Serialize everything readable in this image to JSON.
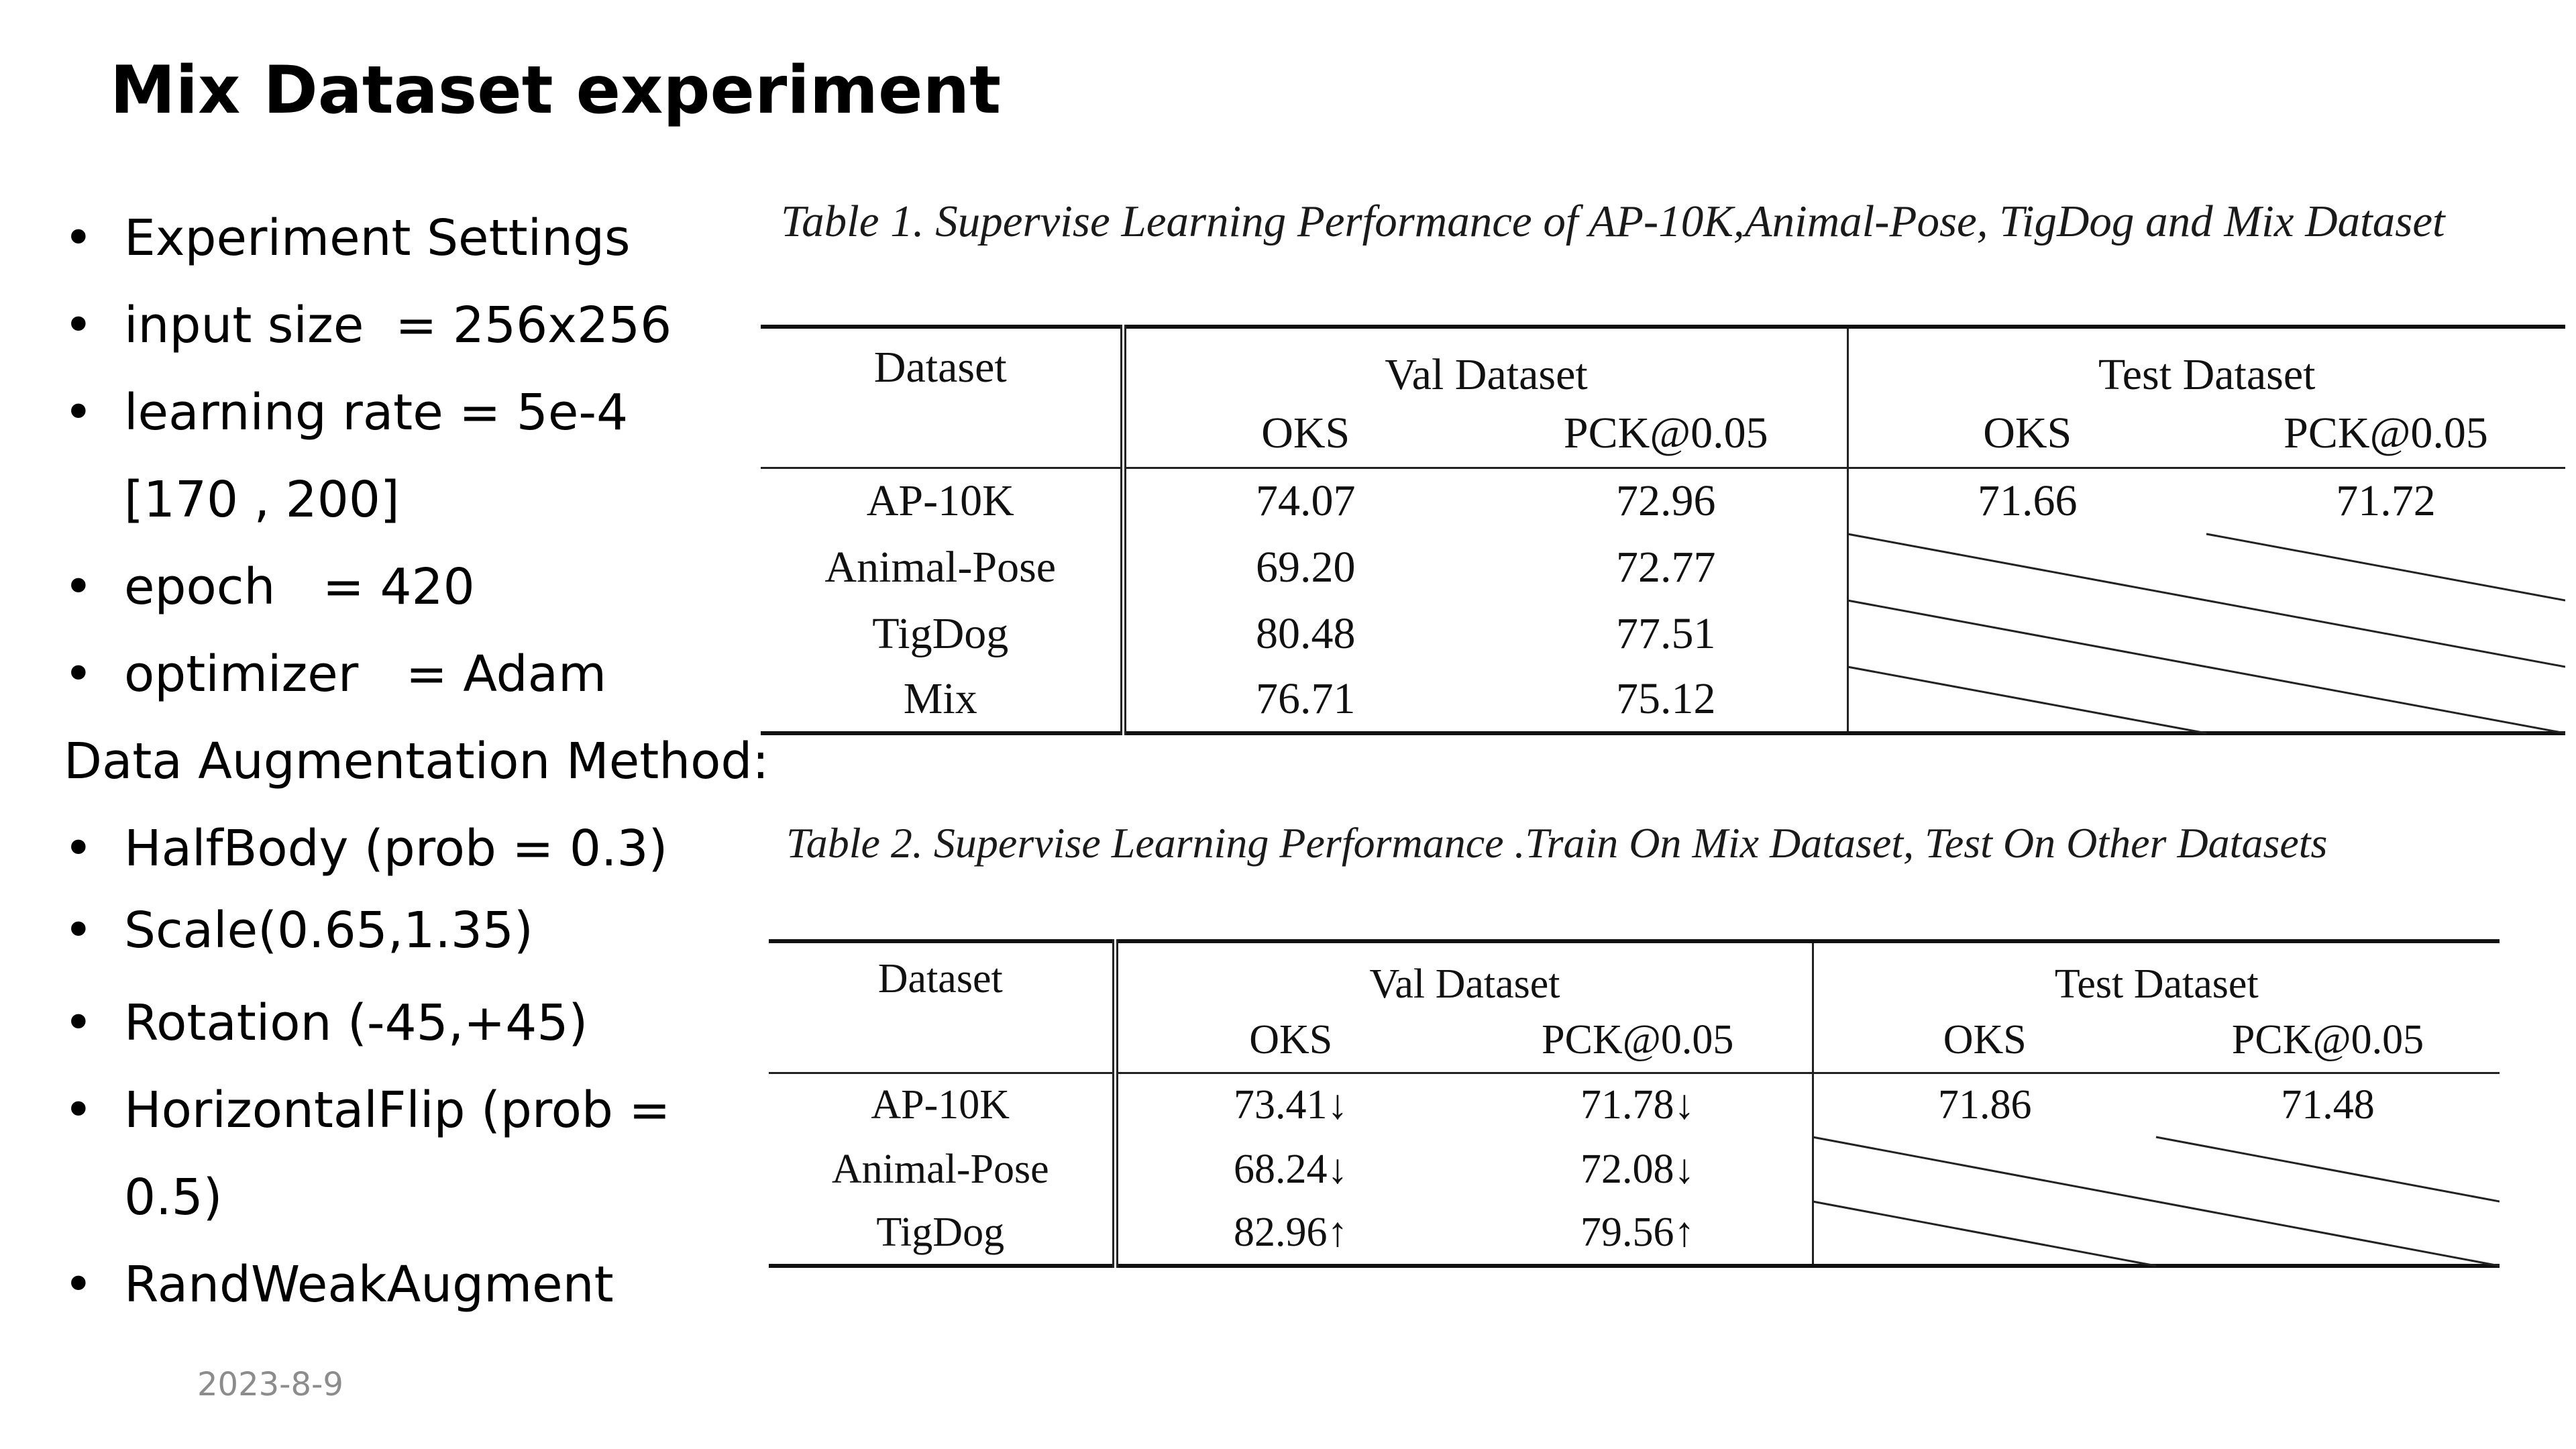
{
  "slide": {
    "title": "Mix Dataset experiment",
    "date": "2023-8-9",
    "bullet_glyph": "•",
    "lines": [
      {
        "text": "Experiment Settings",
        "bullet": true
      },
      {
        "text": "input size  = 256x256",
        "bullet": true
      },
      {
        "text": "learning rate = 5e-4",
        "bullet": true
      },
      {
        "text": "[170 , 200]",
        "bullet": false,
        "indent": true
      },
      {
        "text": "epoch   = 420",
        "bullet": true
      },
      {
        "text": "optimizer   = Adam",
        "bullet": true
      },
      {
        "text": "Data Augmentation Method:",
        "bullet": false,
        "indent": false
      },
      {
        "text": "HalfBody (prob = 0.3)",
        "bullet": true
      },
      {
        "text": "Scale(0.65,1.35)",
        "bullet": true
      },
      {
        "text": "Rotation (-45,+45)",
        "bullet": true
      },
      {
        "text": "HorizontalFlip (prob =",
        "bullet": true
      },
      {
        "text": "0.5)",
        "bullet": false,
        "indent": true
      },
      {
        "text": "RandWeakAugment",
        "bullet": true
      }
    ]
  },
  "table1": {
    "caption": "Table 1. Supervise Learning Performance of AP-10K,Animal-Pose, TigDog and Mix Dataset",
    "dataset_header": "Dataset",
    "val_header": "Val Dataset",
    "test_header": "Test Dataset",
    "sub_headers": [
      "OKS",
      "PCK@0.05",
      "OKS",
      "PCK@0.05"
    ],
    "rows": [
      {
        "dataset": "AP-10K",
        "val_oks": "74.07",
        "val_pck": "72.96",
        "test_oks": "71.66",
        "test_pck": "71.72"
      },
      {
        "dataset": "Animal-Pose",
        "val_oks": "69.20",
        "val_pck": "72.77",
        "test_oks": "",
        "test_pck": ""
      },
      {
        "dataset": "TigDog",
        "val_oks": "80.48",
        "val_pck": "77.51",
        "test_oks": "",
        "test_pck": ""
      },
      {
        "dataset": "Mix",
        "val_oks": "76.71",
        "val_pck": "75.12",
        "test_oks": "",
        "test_pck": ""
      }
    ]
  },
  "table2": {
    "caption": "Table 2. Supervise Learning Performance .Train On Mix Dataset, Test On Other Datasets",
    "dataset_header": "Dataset",
    "val_header": "Val Dataset",
    "test_header": "Test Dataset",
    "sub_headers": [
      "OKS",
      "PCK@0.05",
      "OKS",
      "PCK@0.05"
    ],
    "rows": [
      {
        "dataset": "AP-10K",
        "val_oks": "73.41↓",
        "val_pck": "71.78↓",
        "test_oks": "71.86",
        "test_pck": "71.48"
      },
      {
        "dataset": "Animal-Pose",
        "val_oks": "68.24↓",
        "val_pck": "72.08↓",
        "test_oks": "",
        "test_pck": ""
      },
      {
        "dataset": "TigDog",
        "val_oks": "82.96↑",
        "val_pck": "79.56↑",
        "test_oks": "",
        "test_pck": ""
      }
    ]
  }
}
